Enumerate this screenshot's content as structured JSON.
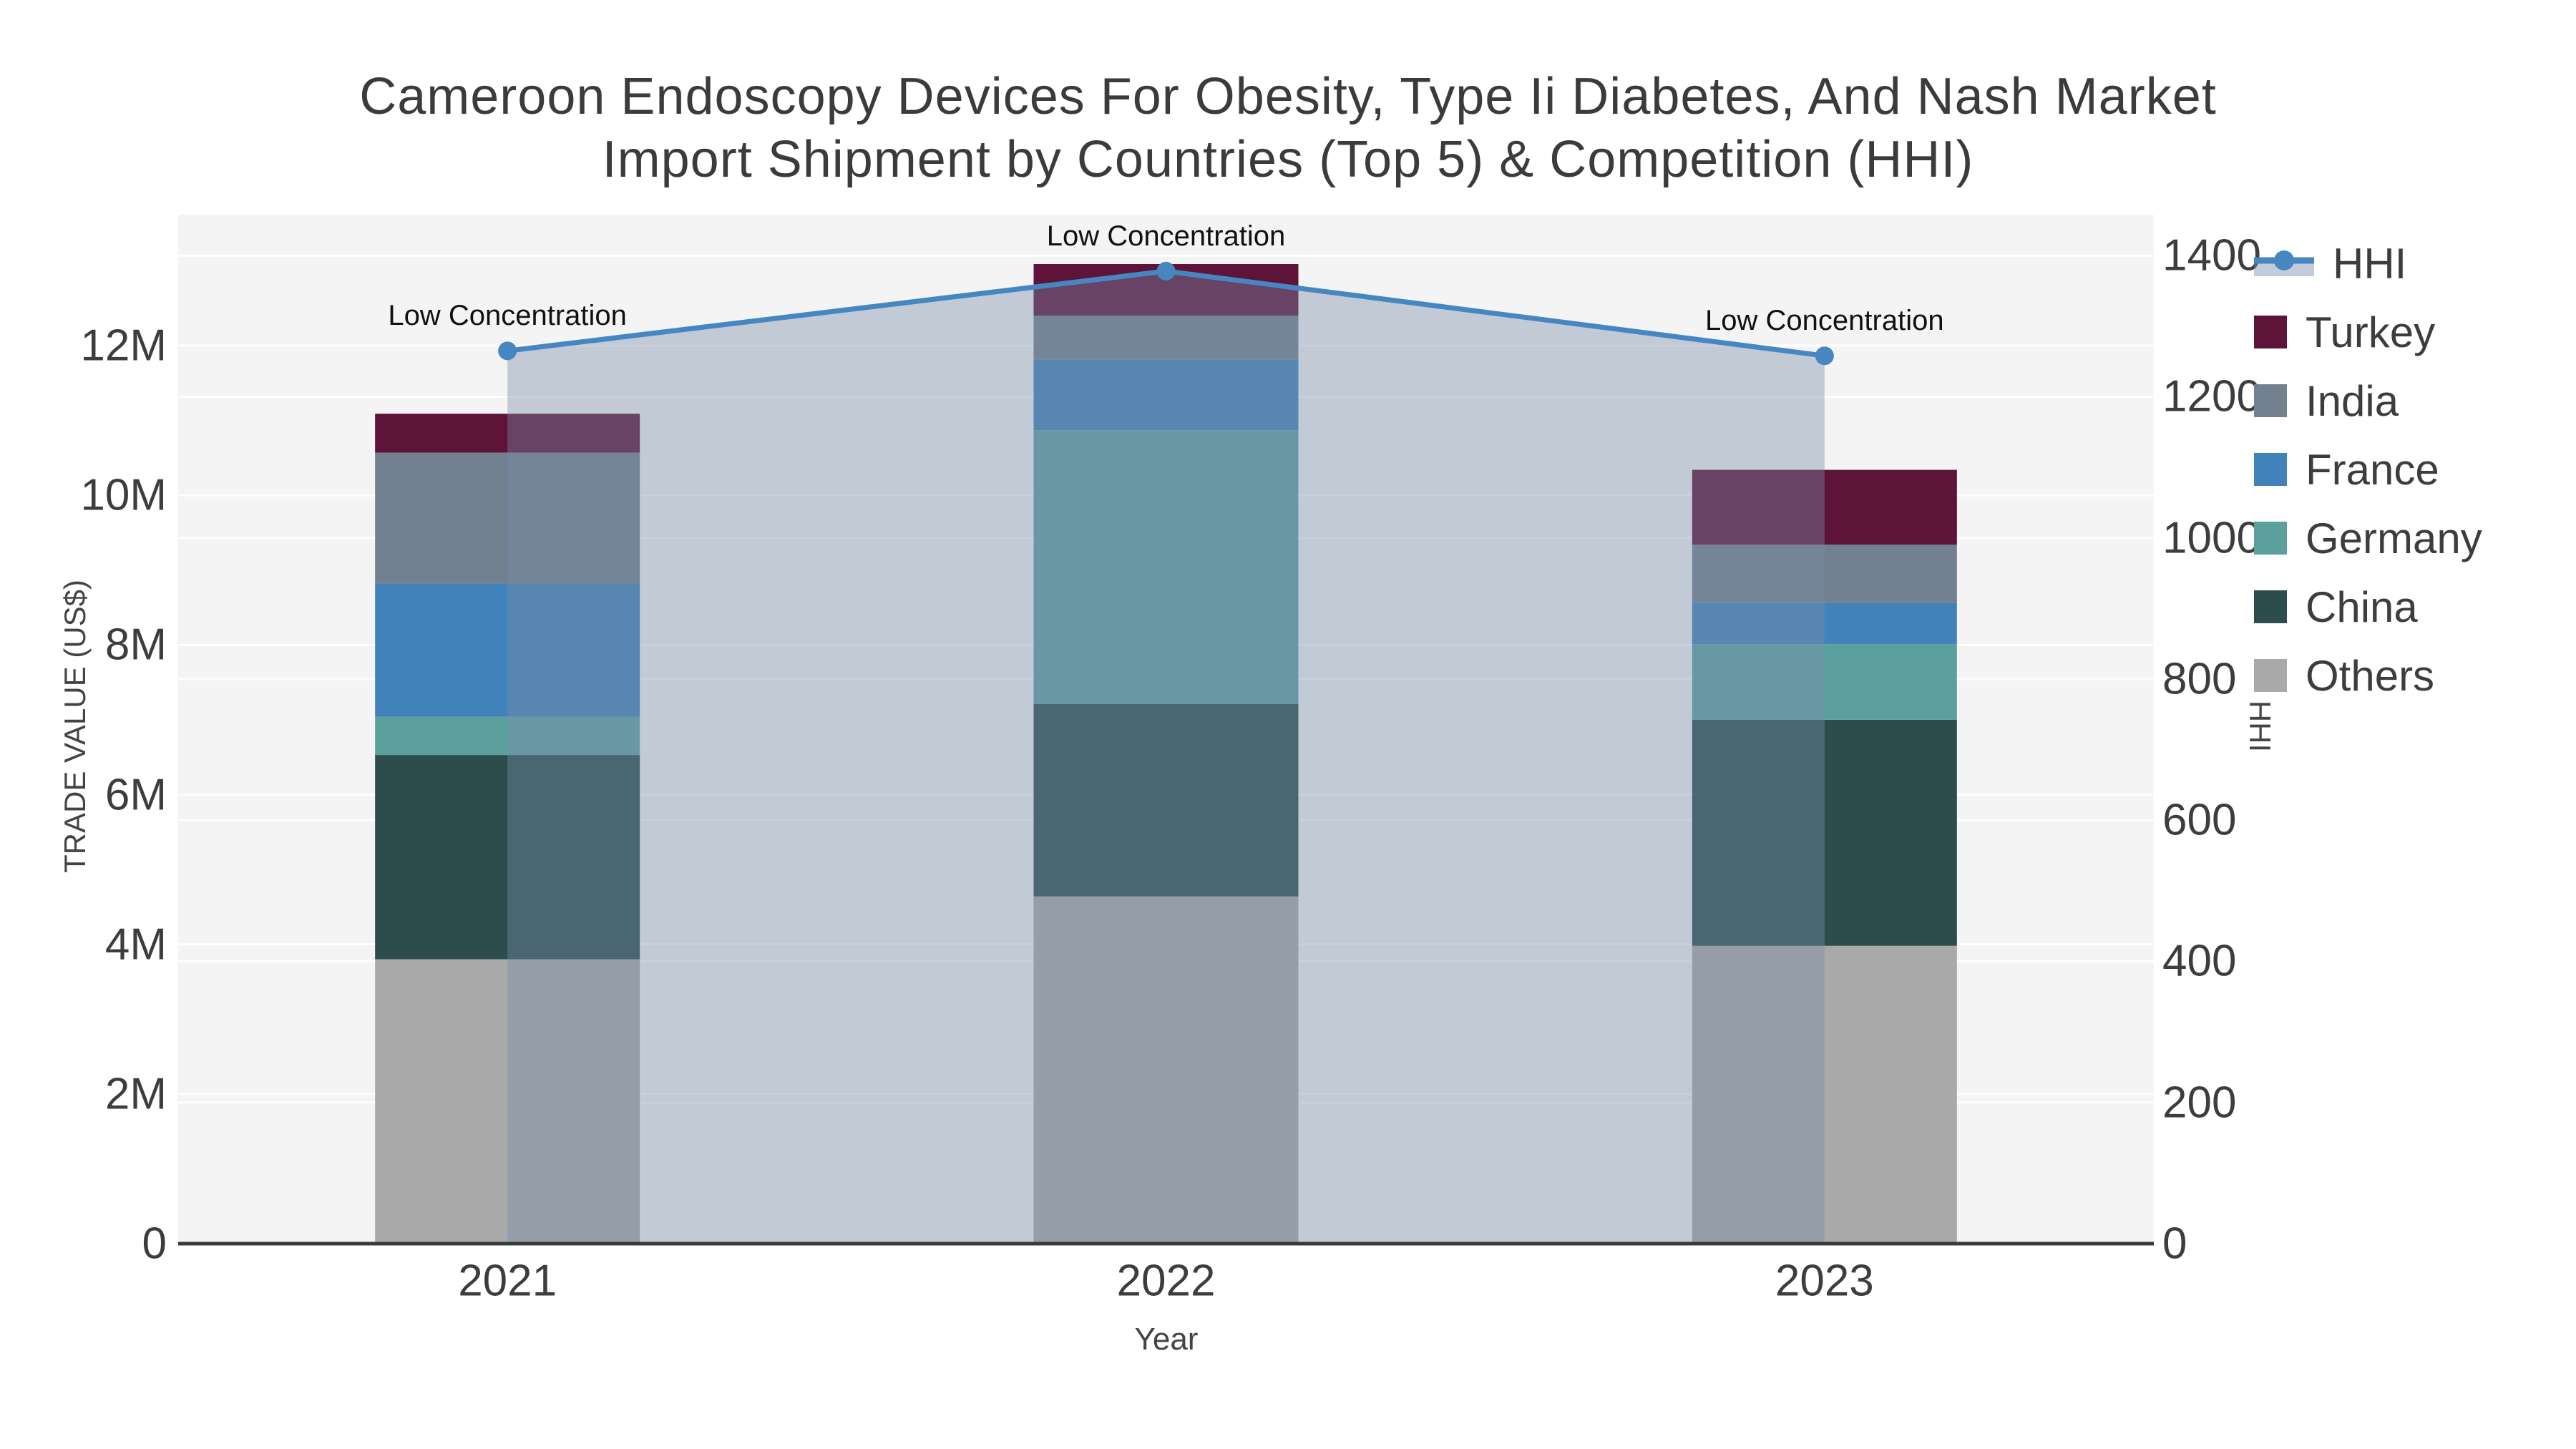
{
  "title": {
    "line1": "Cameroon Endoscopy Devices For Obesity, Type Ii Diabetes, And Nash Market",
    "line2": "Import Shipment by Countries (Top 5) & Competition (HHI)"
  },
  "chart_data": {
    "type": "bar",
    "subtype": "stacked-bar-with-line",
    "categories": [
      "2021",
      "2022",
      "2023"
    ],
    "bar_unit": "millions US$",
    "series": [
      {
        "name": "Others",
        "color": "#A9A9A9",
        "values": [
          3.8,
          4.64,
          3.98
        ]
      },
      {
        "name": "China",
        "color": "#2C4D4B",
        "values": [
          2.73,
          2.57,
          3.02
        ]
      },
      {
        "name": "Germany",
        "color": "#5CA09E",
        "values": [
          0.51,
          3.66,
          1.01
        ]
      },
      {
        "name": "France",
        "color": "#4282BA",
        "values": [
          1.78,
          0.94,
          0.55
        ]
      },
      {
        "name": "India",
        "color": "#72808F",
        "values": [
          1.75,
          0.59,
          0.78
        ]
      },
      {
        "name": "Turkey",
        "color": "#5E1338",
        "values": [
          0.52,
          0.69,
          1.0
        ]
      }
    ],
    "line_series": {
      "name": "HHI",
      "color": "#4687C1",
      "fill_color": "rgba(120,140,170,0.40)",
      "values": [
        1265,
        1378,
        1258
      ],
      "axis": "y2"
    },
    "annotations": [
      "Low Concentration",
      "Low Concentration",
      "Low Concentration"
    ],
    "x_axis": {
      "title": "Year"
    },
    "y1_axis": {
      "title": "TRADE VALUE (US$)",
      "max": 13.75,
      "ticks": [
        {
          "v": 0,
          "label": "0"
        },
        {
          "v": 2,
          "label": "2M"
        },
        {
          "v": 4,
          "label": "4M"
        },
        {
          "v": 6,
          "label": "6M"
        },
        {
          "v": 8,
          "label": "8M"
        },
        {
          "v": 10,
          "label": "10M"
        },
        {
          "v": 12,
          "label": "12M"
        }
      ]
    },
    "y2_axis": {
      "title": "HHI",
      "max": 1458,
      "ticks": [
        {
          "v": 0,
          "label": "0"
        },
        {
          "v": 200,
          "label": "200"
        },
        {
          "v": 400,
          "label": "400"
        },
        {
          "v": 600,
          "label": "600"
        },
        {
          "v": 800,
          "label": "800"
        },
        {
          "v": 1000,
          "label": "1000"
        },
        {
          "v": 1200,
          "label": "1200"
        },
        {
          "v": 1400,
          "label": "1400"
        }
      ]
    },
    "legend_position": "top-right",
    "grid": true
  },
  "colors": {
    "plot_bg": "#f4f4f4",
    "grid": "rgba(255,255,255,0.85)",
    "axis_line": "#3a3a3a",
    "text": "#3d3d3d"
  }
}
